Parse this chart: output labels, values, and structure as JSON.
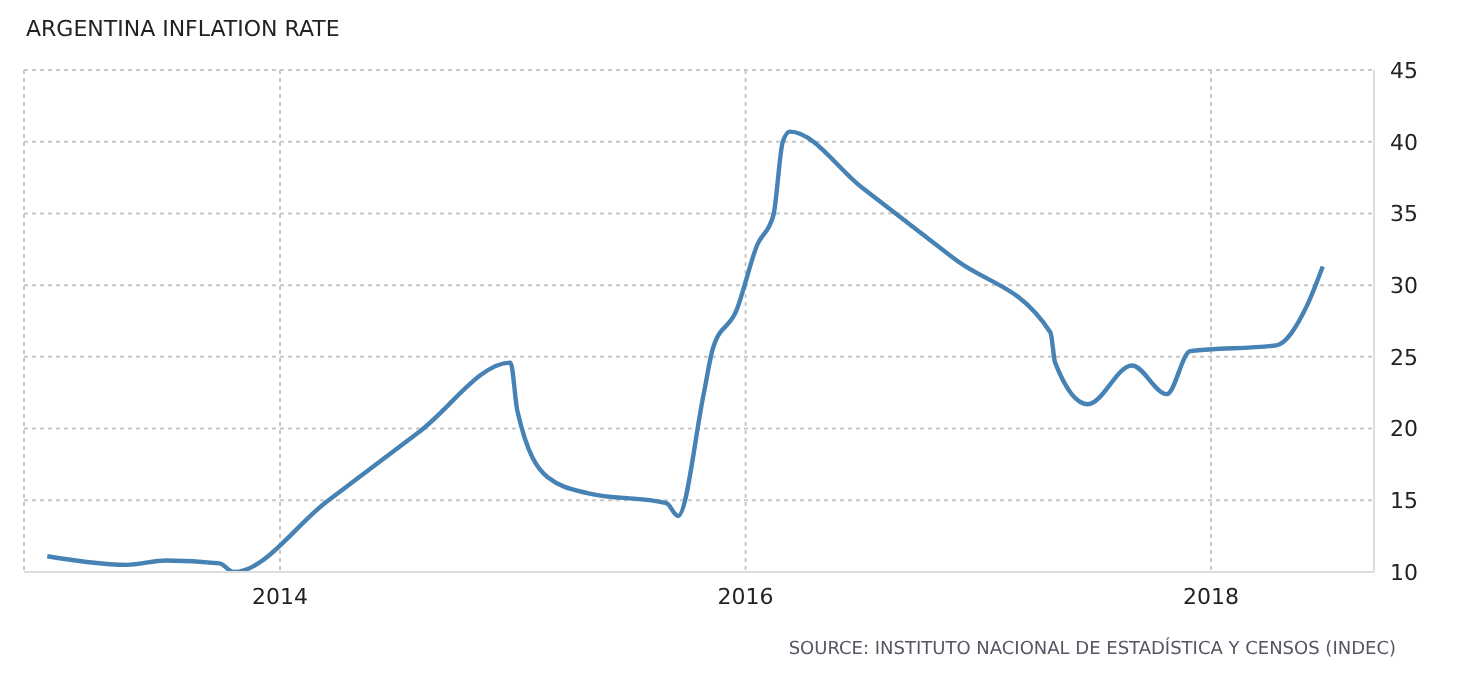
{
  "chart_data": {
    "type": "line",
    "title": "ARGENTINA INFLATION RATE",
    "annotations": [
      "SOURCE: INSTITUTO NACIONAL DE ESTADÍSTICA Y CENSOS (INDEC)"
    ],
    "x": [
      2013.0,
      2013.17,
      2013.34,
      2013.51,
      2013.74,
      2013.8,
      2014.2,
      2014.6,
      2014.99,
      2015.02,
      2015.15,
      2015.32,
      2015.66,
      2015.71,
      2015.82,
      2015.86,
      2015.96,
      2016.05,
      2016.12,
      2016.16,
      2016.19,
      2016.5,
      2016.9,
      2017.31,
      2017.33,
      2017.47,
      2017.66,
      2017.81,
      2017.91,
      2018.28,
      2018.41,
      2018.48
    ],
    "series": [
      {
        "color": "#4682b4",
        "values": [
          11.1,
          10.7,
          10.5,
          10.8,
          10.6,
          10.0,
          14.9,
          19.8,
          24.6,
          21.2,
          16.6,
          15.5,
          14.8,
          13.9,
          22.4,
          25.6,
          28.2,
          32.8,
          34.9,
          40.0,
          40.7,
          36.8,
          31.8,
          26.7,
          24.6,
          21.7,
          24.4,
          22.4,
          25.4,
          25.8,
          28.5,
          31.3
        ]
      }
    ],
    "xlim": [
      2012.9,
      2018.7
    ],
    "xticks": [
      2014,
      2016,
      2018
    ],
    "ylim": [
      10,
      45
    ],
    "yticks": [
      10,
      15,
      20,
      25,
      30,
      35,
      40,
      45
    ],
    "grid": true,
    "legend": false,
    "marker": "none",
    "line_style": "solid"
  }
}
